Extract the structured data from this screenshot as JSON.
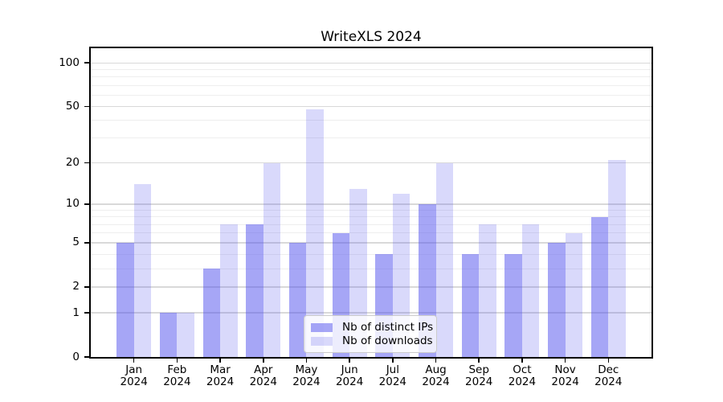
{
  "chart_data": {
    "type": "bar",
    "title": "WriteXLS 2024",
    "categories": [
      "Jan",
      "Feb",
      "Mar",
      "Apr",
      "May",
      "Jun",
      "Jul",
      "Aug",
      "Sep",
      "Oct",
      "Nov",
      "Dec"
    ],
    "category_year": "2024",
    "series": [
      {
        "name": "Nb of distinct IPs",
        "color": "rgba(77,77,238,0.50)",
        "values": [
          5,
          1,
          3,
          7,
          5,
          6,
          4,
          10,
          4,
          4,
          5,
          8
        ]
      },
      {
        "name": "Nb of downloads",
        "color": "rgba(77,77,238,0.21)",
        "values": [
          14,
          1,
          7,
          20,
          48,
          13,
          12,
          20,
          7,
          7,
          6,
          21
        ]
      }
    ],
    "yscale": "log1p",
    "y_major_ticks": [
      0,
      1,
      2,
      5,
      10,
      20,
      50,
      100
    ],
    "y_minor_gridlines": [
      3,
      4,
      6,
      7,
      8,
      9,
      30,
      40,
      60,
      70,
      80,
      90
    ],
    "ylim": [
      0,
      126
    ],
    "xlabel": "",
    "ylabel": "",
    "grid": true,
    "legend": {
      "position": "inside-bottom-center"
    },
    "colors": {
      "major_grid": "#d9d9d9",
      "minor_grid": "#eeeeee",
      "spine": "#000000"
    }
  }
}
